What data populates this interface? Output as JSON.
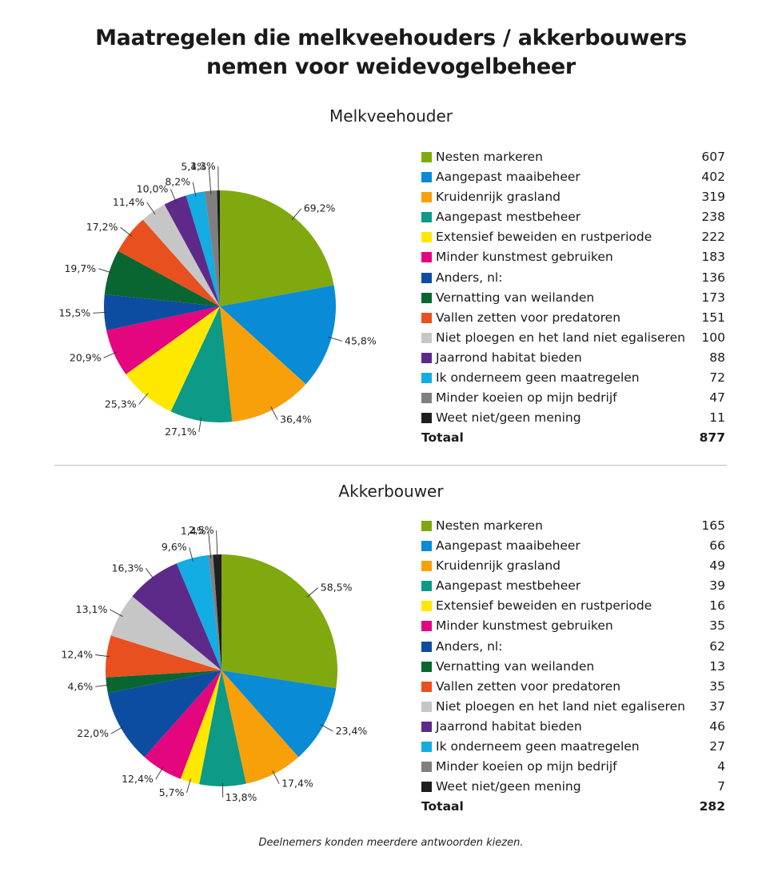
{
  "title_line1": "Maatregelen die melkveehouders / akkerbouwers",
  "title_line2": "nemen voor weidevogelbeheer",
  "footnote": "Deelnemers konden meerdere antwoorden kiezen.",
  "chart_data": [
    {
      "type": "pie",
      "title": "Melkveehouder",
      "categories": [
        "Nesten markeren",
        "Aangepast maaibeheer",
        "Kruidenrijk grasland",
        "Aangepast mestbeheer",
        "Extensief beweiden en rustperiode",
        "Minder kunstmest gebruiken",
        "Anders, nl:",
        "Vernatting van weilanden",
        "Vallen zetten voor predatoren",
        "Niet ploegen en het land niet egaliseren",
        "Jaarrond habitat bieden",
        "Ik onderneem geen maatregelen",
        "Minder koeien op mijn bedrijf",
        "Weet niet/geen mening"
      ],
      "values": [
        607,
        402,
        319,
        238,
        222,
        183,
        136,
        173,
        151,
        100,
        88,
        72,
        47,
        11
      ],
      "percent_labels": [
        "69,2%",
        "45,8%",
        "36,4%",
        "27,1%",
        "25,3%",
        "20,9%",
        "15,5%",
        "19,7%",
        "17,2%",
        "11,4%",
        "10,0%",
        "8,2%",
        "5,4%",
        "1,3%"
      ],
      "colors": [
        "#7fa90f",
        "#0a8bd6",
        "#f7a009",
        "#0d9a87",
        "#ffe800",
        "#e4067e",
        "#0d4da1",
        "#0a6630",
        "#e9501f",
        "#c6c6c6",
        "#5d2a8a",
        "#13ace3",
        "#7f7f7f",
        "#1e1e1e"
      ],
      "total_label": "Totaal",
      "total": 877,
      "legend": "right"
    },
    {
      "type": "pie",
      "title": "Akkerbouwer",
      "categories": [
        "Nesten markeren",
        "Aangepast maaibeheer",
        "Kruidenrijk grasland",
        "Aangepast mestbeheer",
        "Extensief beweiden en rustperiode",
        "Minder kunstmest gebruiken",
        "Anders, nl:",
        "Vernatting van weilanden",
        "Vallen zetten voor predatoren",
        "Niet ploegen en het land niet egaliseren",
        "Jaarrond habitat bieden",
        "Ik onderneem geen maatregelen",
        "Minder koeien op mijn bedrijf",
        "Weet niet/geen mening"
      ],
      "values": [
        165,
        66,
        49,
        39,
        16,
        35,
        62,
        13,
        35,
        37,
        46,
        27,
        4,
        7
      ],
      "percent_labels": [
        "58,5%",
        "23,4%",
        "17,4%",
        "13,8%",
        "5,7%",
        "12,4%",
        "22,0%",
        "4,6%",
        "12,4%",
        "13,1%",
        "16,3%",
        "9,6%",
        "1,4%",
        "2,5%"
      ],
      "colors": [
        "#7fa90f",
        "#0a8bd6",
        "#f7a009",
        "#0d9a87",
        "#ffe800",
        "#e4067e",
        "#0d4da1",
        "#0a6630",
        "#e9501f",
        "#c6c6c6",
        "#5d2a8a",
        "#13ace3",
        "#7f7f7f",
        "#1e1e1e"
      ],
      "total_label": "Totaal",
      "total": 282,
      "legend": "right"
    }
  ]
}
